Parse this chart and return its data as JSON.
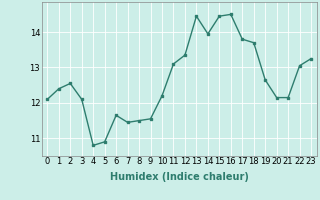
{
  "x": [
    0,
    1,
    2,
    3,
    4,
    5,
    6,
    7,
    8,
    9,
    10,
    11,
    12,
    13,
    14,
    15,
    16,
    17,
    18,
    19,
    20,
    21,
    22,
    23
  ],
  "y": [
    12.1,
    12.4,
    12.55,
    12.1,
    10.8,
    10.9,
    11.65,
    11.45,
    11.5,
    11.55,
    12.2,
    13.1,
    13.35,
    14.45,
    13.95,
    14.45,
    14.5,
    13.8,
    13.7,
    12.65,
    12.15,
    12.15,
    13.05,
    13.25
  ],
  "line_color": "#2e7d6e",
  "marker": "s",
  "marker_size": 2,
  "bg_color": "#cceee8",
  "grid_color": "#ffffff",
  "xlabel": "Humidex (Indice chaleur)",
  "yticks": [
    11,
    12,
    13,
    14
  ],
  "xtick_labels": [
    "0",
    "1",
    "2",
    "3",
    "4",
    "5",
    "6",
    "7",
    "8",
    "9",
    "10",
    "11",
    "12",
    "13",
    "14",
    "15",
    "16",
    "17",
    "18",
    "19",
    "20",
    "21",
    "22",
    "23"
  ],
  "xlim": [
    -0.5,
    23.5
  ],
  "ylim": [
    10.5,
    14.85
  ],
  "xlabel_fontsize": 7,
  "tick_fontsize": 6,
  "linewidth": 1.0
}
